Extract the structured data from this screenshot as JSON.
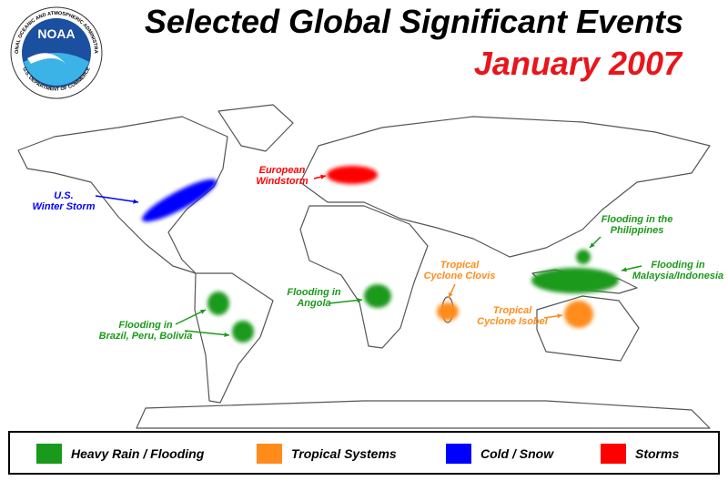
{
  "header": {
    "title": "Selected Global Significant Events",
    "subtitle": "January 2007",
    "logo": {
      "name": "NOAA",
      "ring_top": "NATIONAL OCEANIC AND ATMOSPHERIC ADMINISTRATION",
      "ring_bottom": "U.S. DEPARTMENT OF COMMERCE"
    }
  },
  "events": [
    {
      "lines": [
        "U.S.",
        "Winter Storm"
      ],
      "color": "#0000ff"
    },
    {
      "lines": [
        "European",
        "Windstorm"
      ],
      "color": "#ff0000"
    },
    {
      "lines": [
        "Flooding in the",
        "Philippines"
      ],
      "color": "#1a9a1a"
    },
    {
      "lines": [
        "Flooding in",
        "Malaysia/Indonesia"
      ],
      "color": "#1a9a1a"
    },
    {
      "lines": [
        "Tropical",
        "Cyclone Clovis"
      ],
      "color": "#ff8c1a"
    },
    {
      "lines": [
        "Tropical",
        "Cyclone Isobel"
      ],
      "color": "#ff8c1a"
    },
    {
      "lines": [
        "Flooding in",
        "Angola"
      ],
      "color": "#1a9a1a"
    },
    {
      "lines": [
        "Flooding in",
        "Brazil, Peru, Bolivia"
      ],
      "color": "#1a9a1a"
    }
  ],
  "legend": [
    {
      "label": "Heavy Rain / Flooding",
      "color": "#1a9a1a"
    },
    {
      "label": "Tropical Systems",
      "color": "#ff8c1a"
    },
    {
      "label": "Cold / Snow",
      "color": "#0000ff"
    },
    {
      "label": "Storms",
      "color": "#ff0000"
    }
  ]
}
